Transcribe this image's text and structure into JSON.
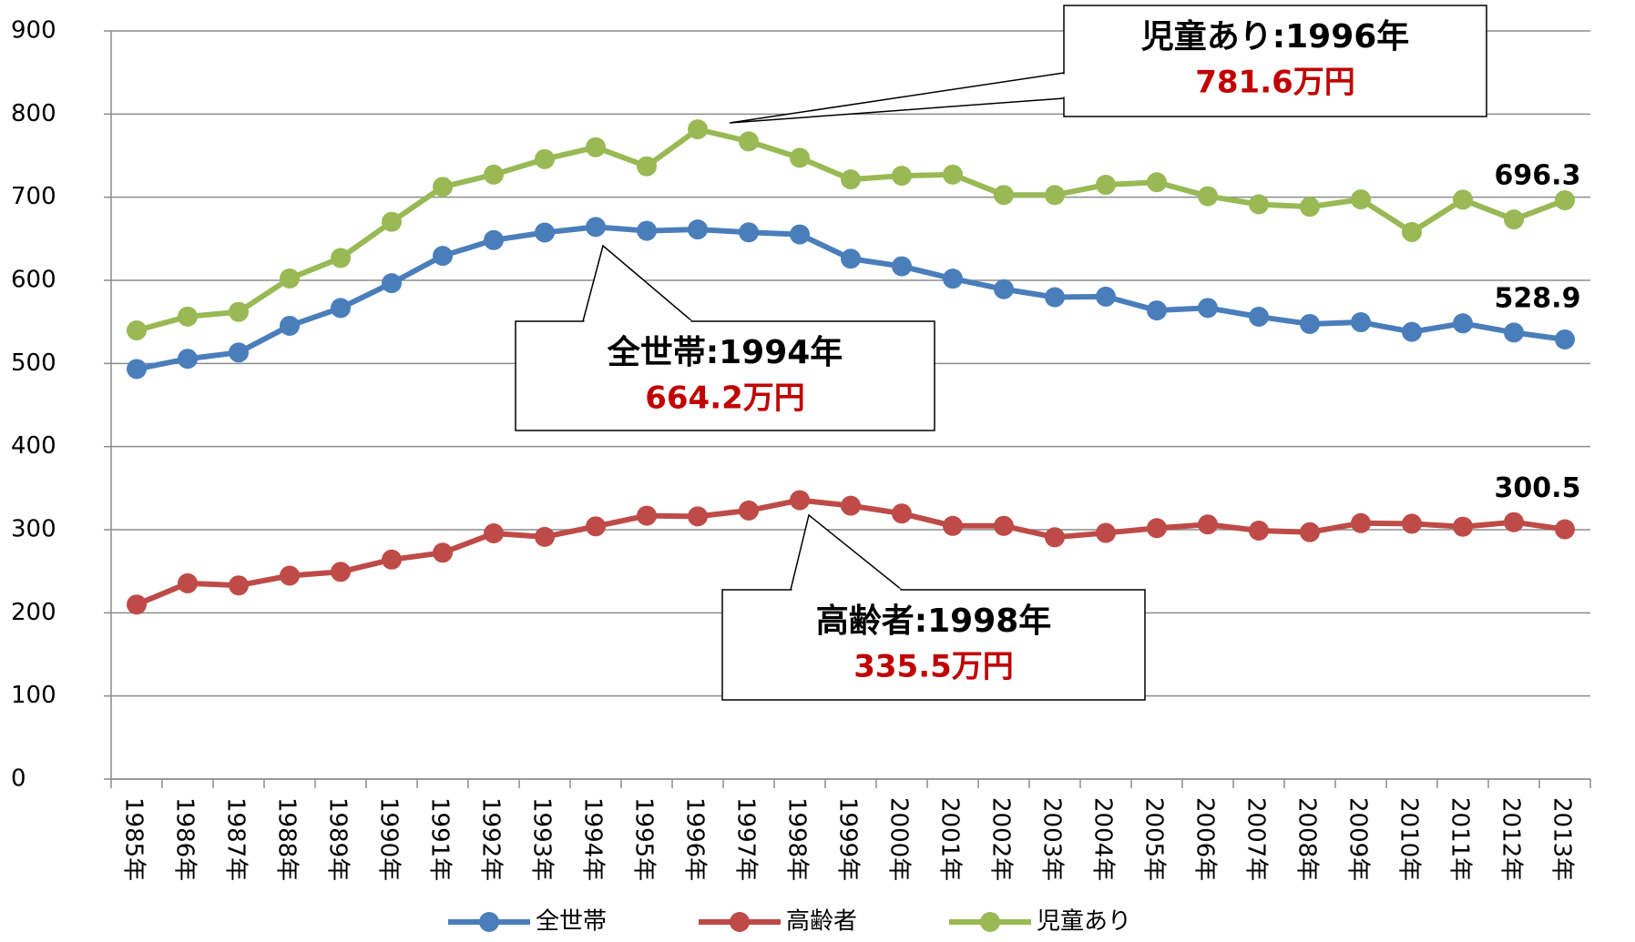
{
  "chart_data": {
    "type": "line",
    "categories": [
      "1985年",
      "1986年",
      "1987年",
      "1988年",
      "1989年",
      "1990年",
      "1991年",
      "1992年",
      "1993年",
      "1994年",
      "1995年",
      "1996年",
      "1997年",
      "1998年",
      "1999年",
      "2000年",
      "2001年",
      "2002年",
      "2003年",
      "2004年",
      "2005年",
      "2006年",
      "2007年",
      "2008年",
      "2009年",
      "2010年",
      "2011年",
      "2012年",
      "2013年"
    ],
    "series": [
      {
        "name": "全世帯",
        "color": "#4a7ebb",
        "values": [
          493.3,
          505.6,
          513.2,
          545.3,
          566.7,
          596.6,
          629.4,
          648.4,
          657.5,
          664.2,
          659.6,
          661.2,
          657.7,
          655.2,
          626.0,
          616.9,
          602.0,
          589.3,
          579.7,
          580.4,
          563.8,
          566.8,
          556.2,
          547.5,
          549.6,
          538.0,
          548.2,
          537.2,
          528.9
        ]
      },
      {
        "name": "高齢者",
        "color": "#be4b48",
        "values": [
          210.0,
          235.5,
          233.0,
          244.7,
          249.3,
          264.1,
          272.3,
          295.6,
          291.4,
          304.0,
          316.9,
          316.0,
          323.1,
          335.5,
          328.9,
          319.5,
          304.6,
          304.6,
          290.9,
          296.1,
          301.9,
          306.3,
          298.9,
          297.0,
          307.9,
          307.2,
          303.6,
          309.1,
          300.5
        ]
      },
      {
        "name": "児童あり",
        "color": "#98b954",
        "values": [
          539.8,
          556.4,
          562.0,
          602.2,
          626.9,
          670.4,
          712.4,
          727.2,
          745.8,
          760.1,
          737.2,
          781.6,
          767.1,
          747.4,
          721.4,
          725.8,
          727.2,
          702.7,
          702.6,
          714.9,
          718.0,
          701.2,
          691.4,
          688.5,
          697.3,
          658.1,
          697.0,
          673.2,
          696.3
        ]
      }
    ],
    "ylim": [
      0,
      900
    ],
    "yticks": [
      0,
      100,
      200,
      300,
      400,
      500,
      600,
      700,
      800,
      900
    ],
    "grid": true,
    "legend": "bottom",
    "annotations": [
      {
        "title": "児童あり:1996年",
        "label": "781.6万円"
      },
      {
        "title": "全世帯:1994年",
        "label": "664.2万円"
      },
      {
        "title": "高齢者:1998年",
        "label": "335.5万円"
      }
    ]
  }
}
